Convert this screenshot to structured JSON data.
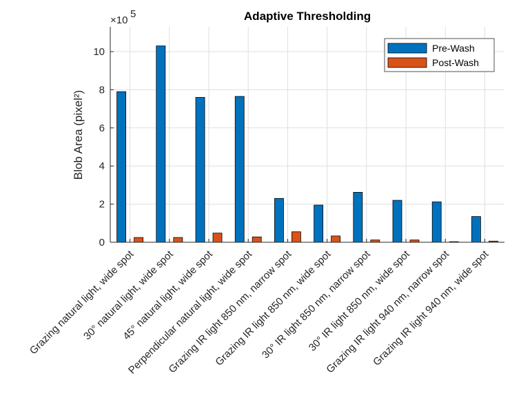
{
  "chart_data": {
    "type": "bar",
    "title": "Adaptive Thresholding",
    "xlabel": "",
    "ylabel": "Blob Area (pixel²)",
    "exponent_label": "×10",
    "exponent_power": "5",
    "ylim": [
      0,
      11.3
    ],
    "yticks": [
      0,
      2,
      4,
      6,
      8,
      10
    ],
    "ytick_labels": [
      "0",
      "2",
      "4",
      "6",
      "8",
      "10"
    ],
    "grid": true,
    "legend_position": "top-right",
    "categories": [
      "Grazing natural light, wide spot",
      "30° natural light, wide spot",
      "45° natural light, wide spot",
      "Perpendicular natural light, wide spot",
      "Grazing IR light 850 nm, narrow spot",
      "Grazing IR light 850 nm, wide spot",
      "30° IR light 850 nm, narrow spot",
      "30° IR light 850 nm, wide spot",
      "Grazing IR light 940 nm, narrow spot",
      "Grazing IR light 940 nm, wide spot"
    ],
    "series": [
      {
        "name": "Pre-Wash",
        "color": "#0072BD",
        "values": [
          7.9,
          10.3,
          7.6,
          7.65,
          2.3,
          1.95,
          2.62,
          2.2,
          2.12,
          1.35
        ]
      },
      {
        "name": "Post-Wash",
        "color": "#D95319",
        "values": [
          0.25,
          0.25,
          0.48,
          0.28,
          0.55,
          0.33,
          0.12,
          0.12,
          0.03,
          0.06
        ]
      }
    ]
  }
}
